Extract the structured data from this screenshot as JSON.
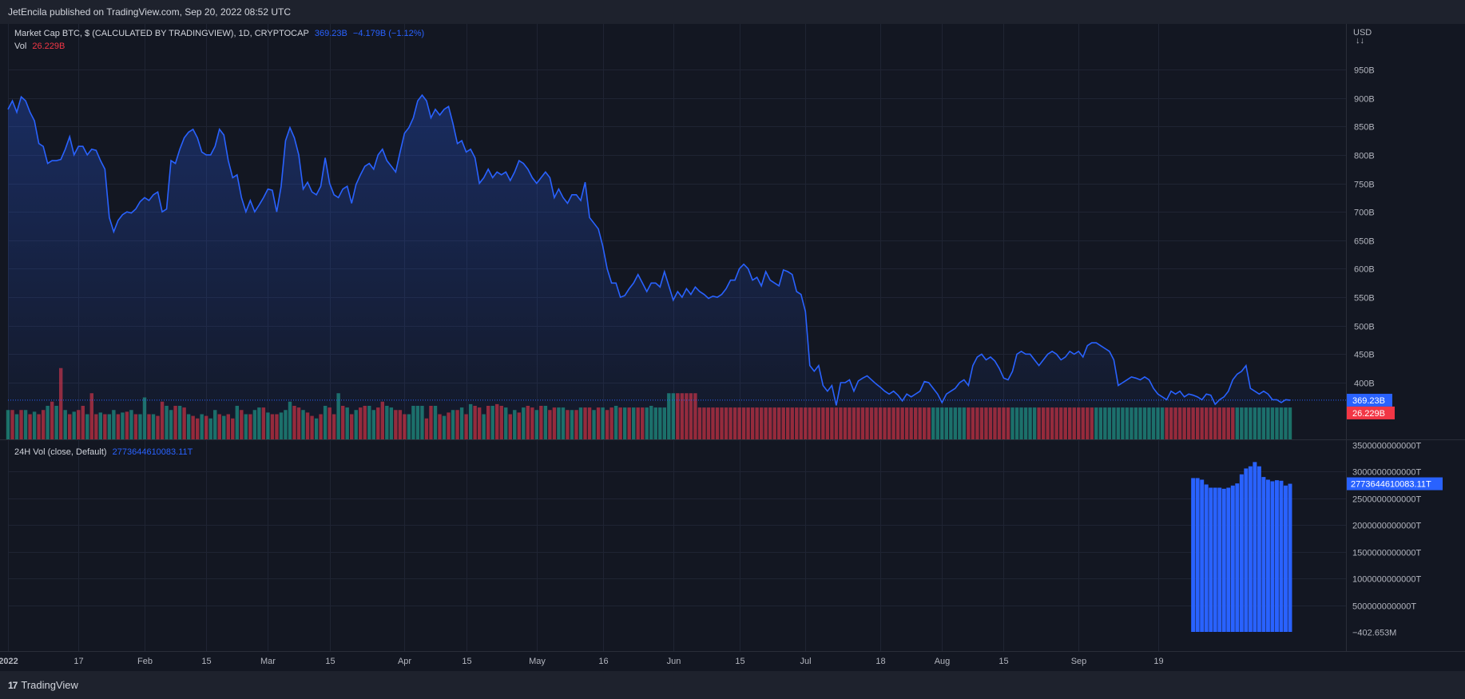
{
  "header": {
    "published": "JetEncila published on TradingView.com, Sep 20, 2022 08:52 UTC"
  },
  "footer": {
    "brand": "TradingView",
    "logo_mark": "17"
  },
  "legend": {
    "main_title": "Market Cap BTC, $ (CALCULATED BY TRADINGVIEW), 1D, CRYPTOCAP",
    "main_last": "369.23B",
    "main_change": "−4.179B (−1.12%)",
    "vol_label": "Vol",
    "vol_value": "26.229B",
    "ind_title": "24H Vol (close, Default)",
    "ind_value": "2773644610083.11T"
  },
  "price_axis": {
    "currency": "USD",
    "currency_arrows": "↓↓",
    "labels": [
      "950B",
      "900B",
      "850B",
      "800B",
      "750B",
      "700B",
      "650B",
      "600B",
      "550B",
      "500B",
      "450B",
      "400B"
    ],
    "last_badge": "369.23B",
    "vol_badge": "26.229B"
  },
  "ind_axis": {
    "labels": [
      "3500000000000T",
      "3000000000000T",
      "2500000000000T",
      "2000000000000T",
      "1500000000000T",
      "1000000000000T",
      "500000000000T",
      "−402.653M"
    ],
    "last_badge": "2773644610083.11T"
  },
  "time_axis": {
    "labels": [
      "2022",
      "17",
      "Feb",
      "15",
      "Mar",
      "15",
      "Apr",
      "15",
      "May",
      "16",
      "Jun",
      "15",
      "Jul",
      "18",
      "Aug",
      "15",
      "Sep",
      "19"
    ]
  },
  "colors": {
    "line": "#2962ff",
    "up": "#22ab94",
    "down": "#f23645",
    "ind_bar": "#2962ff",
    "background": "#131722"
  },
  "chart_data": [
    {
      "type": "area",
      "title": "Market Cap BTC, $ (CALCULATED BY TRADINGVIEW), 1D, CRYPTOCAP",
      "unit": "B USD",
      "x_start": "2022-01-01",
      "ylim": [
        350,
        975
      ],
      "last_value": 369.23,
      "values": [
        880,
        895,
        875,
        902,
        895,
        875,
        860,
        820,
        815,
        785,
        790,
        790,
        792,
        810,
        832,
        800,
        815,
        815,
        800,
        810,
        808,
        790,
        775,
        690,
        665,
        685,
        695,
        700,
        698,
        705,
        718,
        725,
        720,
        730,
        735,
        700,
        705,
        790,
        785,
        810,
        830,
        840,
        845,
        830,
        805,
        800,
        800,
        815,
        845,
        835,
        790,
        760,
        765,
        725,
        700,
        720,
        700,
        712,
        725,
        740,
        738,
        700,
        745,
        825,
        848,
        830,
        800,
        740,
        752,
        735,
        730,
        745,
        795,
        750,
        730,
        725,
        740,
        745,
        715,
        748,
        765,
        780,
        785,
        775,
        800,
        810,
        790,
        780,
        770,
        805,
        838,
        848,
        865,
        895,
        905,
        895,
        865,
        880,
        870,
        880,
        885,
        855,
        820,
        825,
        805,
        810,
        795,
        750,
        760,
        775,
        760,
        770,
        765,
        770,
        755,
        770,
        790,
        785,
        775,
        760,
        750,
        760,
        770,
        760,
        725,
        740,
        725,
        715,
        730,
        730,
        720,
        752,
        690,
        680,
        670,
        640,
        600,
        575,
        575,
        550,
        553,
        565,
        575,
        590,
        575,
        560,
        575,
        575,
        568,
        595,
        570,
        545,
        560,
        550,
        565,
        555,
        568,
        560,
        555,
        548,
        552,
        550,
        555,
        565,
        580,
        580,
        600,
        608,
        600,
        580,
        585,
        570,
        595,
        580,
        575,
        570,
        598,
        595,
        590,
        560,
        555,
        525,
        430,
        420,
        430,
        395,
        385,
        395,
        360,
        400,
        400,
        405,
        385,
        403,
        408,
        412,
        405,
        398,
        392,
        385,
        380,
        385,
        378,
        368,
        380,
        375,
        380,
        385,
        402,
        400,
        390,
        380,
        365,
        380,
        385,
        390,
        400,
        405,
        395,
        430,
        445,
        450,
        440,
        445,
        438,
        425,
        408,
        405,
        420,
        450,
        455,
        450,
        450,
        440,
        430,
        440,
        450,
        455,
        450,
        440,
        445,
        455,
        450,
        455,
        445,
        465,
        470,
        470,
        465,
        460,
        455,
        440,
        395,
        400,
        405,
        410,
        408,
        405,
        410,
        405,
        390,
        380,
        375,
        370,
        385,
        380,
        385,
        375,
        380,
        378,
        375,
        370,
        380,
        378,
        362,
        370,
        375,
        385,
        405,
        415,
        420,
        430,
        390,
        385,
        380,
        385,
        380,
        370,
        370,
        365,
        370,
        369.23
      ]
    },
    {
      "type": "bar",
      "title": "Vol",
      "last_value": "26.229B",
      "ylim": [
        0,
        120
      ],
      "values": [
        35,
        35,
        30,
        35,
        35,
        30,
        33,
        30,
        35,
        40,
        45,
        40,
        85,
        35,
        30,
        33,
        35,
        40,
        30,
        55,
        30,
        32,
        30,
        30,
        35,
        30,
        32,
        33,
        35,
        30,
        30,
        50,
        30,
        30,
        28,
        45,
        40,
        35,
        40,
        40,
        38,
        30,
        28,
        25,
        30,
        28,
        25,
        35,
        30,
        28,
        30,
        25,
        40,
        35,
        30,
        30,
        35,
        38,
        38,
        32,
        30,
        30,
        32,
        35,
        45,
        40,
        38,
        35,
        32,
        28,
        25,
        30,
        40,
        38,
        30,
        55,
        40,
        38,
        30,
        35,
        38,
        40,
        40,
        35,
        38,
        45,
        40,
        38,
        35,
        35,
        30,
        30,
        40,
        40,
        40,
        25,
        40,
        40,
        30,
        28,
        32,
        35,
        35,
        38,
        30,
        42,
        40,
        38,
        30,
        40,
        40,
        42,
        40,
        38,
        30,
        35,
        32,
        38,
        40,
        38,
        35,
        40,
        40,
        35,
        38,
        38,
        38,
        35,
        35,
        35,
        38,
        38,
        38,
        35,
        38,
        38,
        35,
        38,
        40,
        38,
        38,
        38,
        38,
        38,
        38,
        38,
        40,
        38,
        38,
        38,
        55,
        55,
        55,
        55,
        55,
        55,
        55,
        38,
        38,
        38,
        38,
        38,
        38,
        38,
        38,
        38,
        38,
        38,
        38,
        38,
        38,
        38,
        38,
        38,
        38,
        38,
        38,
        38,
        38,
        38,
        38,
        38,
        38,
        38,
        38,
        38,
        38,
        38,
        38,
        38,
        38,
        38,
        38,
        38,
        38,
        38,
        38,
        38,
        38,
        38,
        38,
        38,
        38,
        38,
        38,
        38,
        38,
        38,
        38,
        38,
        38,
        38,
        38,
        38,
        38,
        38,
        38,
        38,
        38,
        38,
        38,
        38,
        38,
        38,
        38,
        38,
        38,
        38,
        38,
        38,
        38,
        38,
        38,
        38,
        38,
        38,
        38,
        38,
        38,
        38,
        38,
        38,
        38,
        38,
        38,
        38,
        38,
        38,
        38,
        38,
        38,
        38,
        38,
        38,
        38,
        38,
        38,
        38,
        38,
        38,
        38,
        38,
        38,
        38,
        38,
        38,
        38,
        38,
        38,
        38,
        38,
        38,
        38,
        38,
        38,
        38,
        38,
        38,
        38,
        38,
        38,
        38,
        38,
        38,
        38,
        38,
        38,
        38,
        38,
        38,
        38,
        38,
        38,
        38,
        38,
        38,
        38,
        38
      ],
      "colors_up": [
        true,
        false,
        true,
        false,
        true,
        false,
        true,
        false,
        false,
        true,
        false,
        true,
        false,
        true,
        false,
        true,
        false,
        false,
        true,
        false,
        false,
        true,
        false,
        true,
        true,
        false,
        true,
        false,
        true,
        false,
        true,
        true,
        false,
        true,
        false,
        false,
        true,
        true,
        false,
        true,
        false,
        true,
        false,
        false,
        true,
        false,
        true,
        true,
        false,
        true,
        false,
        false,
        true,
        false,
        true,
        false,
        true,
        true,
        false,
        true,
        false,
        false,
        true,
        true,
        true,
        false,
        false,
        true,
        false,
        false,
        true,
        false,
        true,
        false,
        false,
        true,
        false,
        true,
        false,
        true,
        false,
        false,
        true,
        true,
        false,
        false,
        true,
        true,
        false,
        false,
        false,
        true,
        true,
        true,
        true,
        false,
        false,
        true,
        false,
        true,
        false,
        true,
        false,
        true,
        false,
        true,
        false,
        false,
        true,
        false,
        true,
        false,
        false,
        true,
        false,
        true,
        false,
        true,
        false,
        false,
        true,
        false,
        true,
        false,
        false,
        true,
        true,
        false,
        true,
        false,
        true,
        false,
        false,
        true,
        false,
        true,
        false,
        false,
        true,
        false,
        true,
        false,
        true,
        false,
        false,
        true,
        true,
        true,
        true,
        true,
        true,
        true,
        false,
        false,
        false,
        false,
        false,
        false,
        false,
        false,
        false,
        false,
        false,
        false,
        false,
        false,
        false,
        false,
        false,
        false,
        false,
        false,
        false,
        false,
        false,
        false,
        false,
        false,
        false,
        false,
        false,
        false,
        false,
        false,
        false,
        false,
        false,
        false,
        false,
        false,
        false,
        false,
        false,
        false,
        false,
        false,
        false,
        false,
        false,
        false,
        false,
        false,
        false,
        false,
        false,
        false,
        false,
        false,
        false,
        false,
        true,
        true,
        true,
        true,
        true,
        true,
        true,
        true,
        false,
        false,
        false,
        false,
        false,
        false,
        false,
        false,
        false,
        false,
        true,
        true,
        true,
        true,
        true,
        true,
        false,
        false,
        false,
        false,
        false,
        false,
        false,
        false,
        false,
        false,
        false,
        false,
        false,
        true,
        true,
        true,
        true,
        true,
        true,
        true,
        true,
        true,
        true,
        true,
        true,
        true,
        true,
        true,
        true,
        false,
        false,
        false,
        false,
        false,
        false,
        false,
        false,
        false,
        false,
        false,
        false,
        false,
        false,
        false,
        false,
        true,
        true,
        true,
        true,
        true,
        true,
        true,
        true,
        true,
        true,
        true,
        true,
        true,
        true,
        true,
        true,
        true,
        true,
        true,
        true,
        true,
        true,
        true,
        true,
        true,
        true,
        true,
        true,
        true
      ]
    },
    {
      "type": "bar",
      "title": "24H Vol (close, Default)",
      "ylim": [
        0,
        3500000000000
      ],
      "last_value": "2773644610083.11T",
      "values": [
        2880000000000,
        2880000000000,
        2850000000000,
        2760000000000,
        2700000000000,
        2700000000000,
        2700000000000,
        2680000000000,
        2700000000000,
        2740000000000,
        2780000000000,
        2950000000000,
        3060000000000,
        3100000000000,
        3180000000000,
        3100000000000,
        2900000000000,
        2850000000000,
        2820000000000,
        2840000000000,
        2830000000000,
        2740000000000,
        2773644610083
      ]
    }
  ]
}
